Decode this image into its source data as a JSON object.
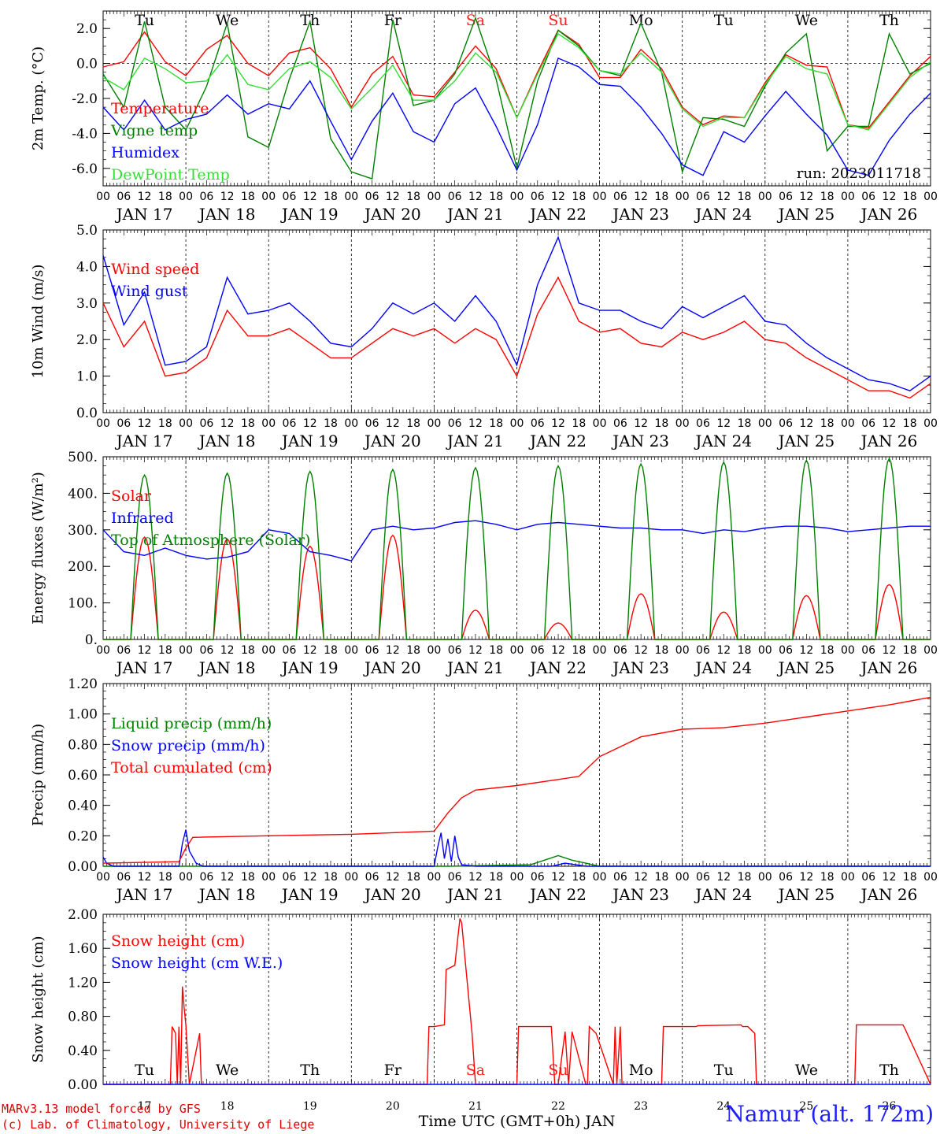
{
  "run_label": "run: 2023011718",
  "footer": {
    "model": "MARv3.13 model forced by GFS",
    "credit": "(c) Lab. of Climatology, University of Liege",
    "station": "Namur (alt. 172m)",
    "xaxis": "Time UTC (GMT+0h) JAN"
  },
  "x_axis": {
    "hour_ticks": [
      "00",
      "06",
      "12",
      "18"
    ],
    "end_label": "00",
    "date_labels": [
      "JAN 17",
      "JAN 18",
      "JAN 19",
      "JAN 20",
      "JAN 21",
      "JAN 22",
      "JAN 23",
      "JAN 24",
      "JAN 25",
      "JAN 26"
    ],
    "day_abbrev": [
      "Tu",
      "We",
      "Th",
      "Fr",
      "Sa",
      "Su",
      "Mo",
      "Tu",
      "We",
      "Th"
    ],
    "weekend_color": "#ff2020",
    "day_numbers": [
      "17",
      "18",
      "19",
      "20",
      "21",
      "22",
      "23",
      "24",
      "25",
      "26"
    ]
  },
  "colors": {
    "red": "#ff0000",
    "green": "#008000",
    "blue": "#0000ff",
    "lightgreen": "#33dd33",
    "black": "#000000"
  },
  "chart_data": [
    {
      "type": "line",
      "ylabel": "2m Temp. (°C)",
      "ylim": [
        -7,
        3
      ],
      "yticks": [
        "2.0",
        "0.0",
        "-2.0",
        "-4.0",
        "-6.0"
      ],
      "ytick_values": [
        2,
        0,
        -2,
        -4,
        -6
      ],
      "zero_line": true,
      "x_units": "hours since JAN 17 00 UTC",
      "series": [
        {
          "name": "Temperature",
          "color": "#ff0000",
          "x": [
            0,
            6,
            12,
            18,
            24,
            30,
            36,
            42,
            48,
            54,
            60,
            66,
            72,
            78,
            84,
            90,
            96,
            102,
            108,
            114,
            120,
            126,
            132,
            138,
            144,
            150,
            156,
            162,
            168,
            174,
            180,
            186,
            192,
            198,
            204,
            210,
            216,
            222,
            228,
            234,
            240
          ],
          "y": [
            -0.2,
            0.1,
            1.8,
            0.1,
            -0.7,
            0.8,
            1.6,
            0,
            -0.7,
            0.6,
            0.9,
            -0.3,
            -2.5,
            -0.6,
            0.4,
            -1.8,
            -1.9,
            -0.5,
            1.0,
            -0.3,
            -3.1,
            -0.5,
            1.9,
            1.1,
            -0.8,
            -0.8,
            0.8,
            -0.3,
            -2.5,
            -3.5,
            -3.0,
            -3.1,
            -1.1,
            0.5,
            -0.1,
            -0.2,
            -3.5,
            -3.7,
            -2.2,
            -0.7,
            0.4
          ]
        },
        {
          "name": "Vigne temp",
          "color": "#008000",
          "x": [
            0,
            6,
            12,
            18,
            24,
            30,
            36,
            42,
            48,
            54,
            60,
            66,
            72,
            78,
            84,
            90,
            96,
            102,
            108,
            114,
            120,
            126,
            132,
            138,
            144,
            150,
            156,
            162,
            168,
            174,
            180,
            186,
            192,
            198,
            204,
            210,
            216,
            222,
            228,
            234,
            240
          ],
          "y": [
            -0.6,
            -2.5,
            2.4,
            -2.5,
            -3.8,
            -1.3,
            2.3,
            -4.2,
            -4.8,
            -0.9,
            2.4,
            -4.3,
            -6.2,
            -6.6,
            2.5,
            -2.4,
            -2.1,
            -0.6,
            2.6,
            -0.9,
            -6.0,
            -1.0,
            1.9,
            1.0,
            -0.4,
            -0.7,
            2.3,
            -0.5,
            -6.2,
            -3.1,
            -3.2,
            -3.6,
            -1.3,
            0.6,
            1.7,
            -5.0,
            -3.6,
            -3.6,
            1.7,
            -0.6,
            0.0
          ]
        },
        {
          "name": "Humidex",
          "color": "#0000ff",
          "x": [
            0,
            6,
            12,
            18,
            24,
            30,
            36,
            42,
            48,
            54,
            60,
            66,
            72,
            78,
            84,
            90,
            96,
            102,
            108,
            114,
            120,
            126,
            132,
            138,
            144,
            150,
            156,
            162,
            168,
            174,
            180,
            186,
            192,
            198,
            204,
            210,
            216,
            222,
            228,
            234,
            240
          ],
          "y": [
            -2.5,
            -3.8,
            -2.1,
            -3.8,
            -3.2,
            -2.9,
            -1.8,
            -2.9,
            -2.3,
            -2.6,
            -1.0,
            -3.3,
            -5.5,
            -3.3,
            -1.7,
            -3.9,
            -4.5,
            -2.3,
            -1.4,
            -3.6,
            -6.1,
            -3.5,
            0.3,
            -0.2,
            -1.2,
            -1.3,
            -2.5,
            -4.0,
            -5.8,
            -6.4,
            -3.9,
            -4.5,
            -3.0,
            -1.6,
            -2.9,
            -4.1,
            -6.1,
            -6.4,
            -4.4,
            -2.9,
            -1.7
          ]
        },
        {
          "name": "DewPoint Temp",
          "color": "#33dd33",
          "x": [
            0,
            6,
            12,
            18,
            24,
            30,
            36,
            42,
            48,
            54,
            60,
            66,
            72,
            78,
            84,
            90,
            96,
            102,
            108,
            114,
            120,
            126,
            132,
            138,
            144,
            150,
            156,
            162,
            168,
            174,
            180,
            186,
            192,
            198,
            204,
            210,
            216,
            222,
            228,
            234,
            240
          ],
          "y": [
            -0.8,
            -1.5,
            0.3,
            -0.3,
            -1.1,
            -1.0,
            0.5,
            -1.2,
            -1.5,
            -0.3,
            0.1,
            -0.8,
            -2.6,
            -1.4,
            -0.1,
            -2.1,
            -2.1,
            -1.0,
            0.6,
            -0.5,
            -3.1,
            -0.6,
            1.7,
            0.9,
            -0.4,
            -0.6,
            0.6,
            -0.5,
            -2.6,
            -3.6,
            -3.1,
            -3.1,
            -1.2,
            0.4,
            -0.3,
            -0.6,
            -3.5,
            -3.8,
            -2.3,
            -0.8,
            0.1
          ]
        }
      ]
    },
    {
      "type": "line",
      "ylabel": "10m Wind (m/s)",
      "ylim": [
        0,
        5
      ],
      "yticks": [
        "5.0",
        "4.0",
        "3.0",
        "2.0",
        "1.0",
        "0.0"
      ],
      "ytick_values": [
        5,
        4,
        3,
        2,
        1,
        0
      ],
      "x_units": "hours since JAN 17 00 UTC",
      "series": [
        {
          "name": "Wind speed",
          "color": "#ff0000",
          "x": [
            0,
            6,
            12,
            18,
            24,
            30,
            36,
            42,
            48,
            54,
            60,
            66,
            72,
            78,
            84,
            90,
            96,
            102,
            108,
            114,
            120,
            126,
            132,
            138,
            144,
            150,
            156,
            162,
            168,
            174,
            180,
            186,
            192,
            198,
            204,
            210,
            216,
            222,
            228,
            234,
            240
          ],
          "y": [
            3.0,
            1.8,
            2.5,
            1.0,
            1.1,
            1.5,
            2.8,
            2.1,
            2.1,
            2.3,
            1.9,
            1.5,
            1.5,
            1.9,
            2.3,
            2.1,
            2.3,
            1.9,
            2.3,
            2.0,
            1.0,
            2.7,
            3.7,
            2.5,
            2.2,
            2.3,
            1.9,
            1.8,
            2.2,
            2.0,
            2.2,
            2.5,
            2.0,
            1.9,
            1.5,
            1.2,
            0.9,
            0.6,
            0.6,
            0.4,
            0.8
          ]
        },
        {
          "name": "Wind gust",
          "color": "#0000ff",
          "x": [
            0,
            6,
            12,
            18,
            24,
            30,
            36,
            42,
            48,
            54,
            60,
            66,
            72,
            78,
            84,
            90,
            96,
            102,
            108,
            114,
            120,
            126,
            132,
            138,
            144,
            150,
            156,
            162,
            168,
            174,
            180,
            186,
            192,
            198,
            204,
            210,
            216,
            222,
            228,
            234,
            240
          ],
          "y": [
            4.3,
            2.4,
            3.3,
            1.3,
            1.4,
            1.8,
            3.7,
            2.7,
            2.8,
            3.0,
            2.5,
            1.9,
            1.8,
            2.3,
            3.0,
            2.7,
            3.0,
            2.5,
            3.2,
            2.5,
            1.3,
            3.5,
            4.8,
            3.0,
            2.8,
            2.8,
            2.5,
            2.3,
            2.9,
            2.6,
            2.9,
            3.2,
            2.5,
            2.4,
            1.9,
            1.5,
            1.2,
            0.9,
            0.8,
            0.6,
            1.0
          ]
        }
      ]
    },
    {
      "type": "line",
      "ylabel": "Energy fluxes (W/m²)",
      "ylim": [
        0,
        500
      ],
      "yticks": [
        "500.",
        "400.",
        "300.",
        "200.",
        "100.",
        "0."
      ],
      "ytick_values": [
        500,
        400,
        300,
        200,
        100,
        0
      ],
      "x_units": "hours since JAN 17 00 UTC",
      "diurnal": {
        "start_hour": 8,
        "end_hour": 16
      },
      "series": [
        {
          "name": "Solar",
          "color": "#ff0000",
          "kind": "diurnal",
          "peaks": [
            280,
            275,
            255,
            285,
            80,
            45,
            125,
            75,
            120,
            150
          ]
        },
        {
          "name": "Infrared",
          "color": "#0000ff",
          "x": [
            0,
            6,
            12,
            18,
            24,
            30,
            36,
            42,
            48,
            54,
            60,
            66,
            72,
            78,
            84,
            90,
            96,
            102,
            108,
            114,
            120,
            126,
            132,
            138,
            144,
            150,
            156,
            162,
            168,
            174,
            180,
            186,
            192,
            198,
            204,
            210,
            216,
            222,
            228,
            234,
            240
          ],
          "y": [
            300,
            240,
            230,
            250,
            230,
            220,
            225,
            240,
            300,
            290,
            240,
            230,
            215,
            300,
            310,
            300,
            305,
            320,
            325,
            315,
            300,
            315,
            320,
            315,
            310,
            305,
            305,
            300,
            300,
            290,
            300,
            295,
            305,
            310,
            310,
            305,
            295,
            300,
            305,
            310,
            310
          ]
        },
        {
          "name": "Top of Atmosphere (Solar)",
          "color": "#008000",
          "kind": "diurnal",
          "peaks": [
            450,
            455,
            460,
            465,
            470,
            475,
            480,
            485,
            490,
            495
          ]
        }
      ]
    },
    {
      "type": "line",
      "ylabel": "Precip (mm/h)",
      "ylim": [
        0,
        1.2
      ],
      "yticks": [
        "1.20",
        "1.00",
        "0.80",
        "0.60",
        "0.40",
        "0.20",
        "0.00"
      ],
      "ytick_values": [
        1.2,
        1.0,
        0.8,
        0.6,
        0.4,
        0.2,
        0.0
      ],
      "x_units": "hours since JAN 17 00 UTC",
      "series": [
        {
          "name": "Liquid precip (mm/h)",
          "color": "#008000",
          "x": [
            0,
            100,
            124,
            128,
            132,
            136,
            140,
            144,
            240
          ],
          "y": [
            0,
            0,
            0.01,
            0.04,
            0.07,
            0.04,
            0.02,
            0,
            0
          ]
        },
        {
          "name": "Snow precip (mm/h)",
          "color": "#0000ff",
          "x": [
            0,
            1,
            3,
            22,
            23,
            24,
            25,
            27,
            29,
            96,
            97,
            98,
            99,
            100,
            101,
            102,
            103,
            104,
            108,
            130,
            134,
            140,
            240
          ],
          "y": [
            0.06,
            0.02,
            0,
            0,
            0.15,
            0.24,
            0.1,
            0.02,
            0,
            0,
            0.12,
            0.22,
            0.05,
            0.18,
            0.03,
            0.2,
            0.06,
            0.01,
            0,
            0,
            0.02,
            0,
            0
          ]
        },
        {
          "name": "Total cumulated (cm)",
          "color": "#ff0000",
          "x": [
            0,
            22,
            24,
            26,
            48,
            72,
            96,
            100,
            104,
            108,
            120,
            132,
            138,
            144,
            156,
            168,
            180,
            192,
            204,
            216,
            228,
            240
          ],
          "y": [
            0.02,
            0.03,
            0.12,
            0.19,
            0.2,
            0.21,
            0.23,
            0.35,
            0.45,
            0.5,
            0.53,
            0.57,
            0.59,
            0.72,
            0.85,
            0.9,
            0.91,
            0.94,
            0.98,
            1.02,
            1.06,
            1.11
          ]
        }
      ]
    },
    {
      "type": "line",
      "ylabel": "Snow height (cm)",
      "ylim": [
        0,
        2
      ],
      "yticks": [
        "2.00",
        "1.60",
        "1.20",
        "0.80",
        "0.40",
        "0.00"
      ],
      "ytick_values": [
        2,
        1.6,
        1.2,
        0.8,
        0.4,
        0
      ],
      "x_units": "hours since JAN 17 00 UTC",
      "series": [
        {
          "name": "Snow height (cm)",
          "color": "#ff0000",
          "x": [
            0,
            19.5,
            20,
            21,
            21.5,
            22,
            22.5,
            23,
            23.5,
            24,
            25,
            28,
            28.5,
            29,
            94,
            94.5,
            96,
            99,
            99.5,
            101,
            102,
            103.5,
            104,
            107,
            108,
            108.5,
            120,
            120.5,
            121,
            130,
            131,
            132,
            134,
            135,
            136,
            140,
            140.5,
            141,
            143,
            148,
            148.5,
            149,
            150,
            150.5,
            151,
            151.5,
            162,
            162.5,
            164,
            165,
            172,
            172.5,
            185,
            185.5,
            187,
            189,
            189.5,
            190,
            200,
            200.5,
            205,
            205.5,
            218,
            218.5,
            232,
            232.5,
            240
          ],
          "y": [
            0,
            0,
            0.68,
            0.6,
            0,
            0.68,
            0,
            1.15,
            0.9,
            0.7,
            0,
            0.6,
            0,
            0,
            0,
            0.68,
            0.68,
            0.7,
            1.35,
            1.38,
            1.4,
            1.95,
            1.9,
            0.6,
            0,
            0,
            0,
            0.68,
            0.68,
            0.68,
            0,
            0,
            0.62,
            0,
            0.62,
            0,
            0,
            0.68,
            0.6,
            0,
            0.68,
            0,
            0.68,
            0,
            0,
            0,
            0,
            0.68,
            0.68,
            0.68,
            0.68,
            0.69,
            0.7,
            0.68,
            0.68,
            0.6,
            0,
            0,
            0,
            0,
            0,
            0,
            0,
            0.7,
            0.7,
            0.66,
            0
          ]
        },
        {
          "name": "Snow height (cm W.E.)",
          "color": "#0000ff",
          "x": [
            0,
            240
          ],
          "y": [
            0,
            0
          ]
        }
      ]
    }
  ]
}
